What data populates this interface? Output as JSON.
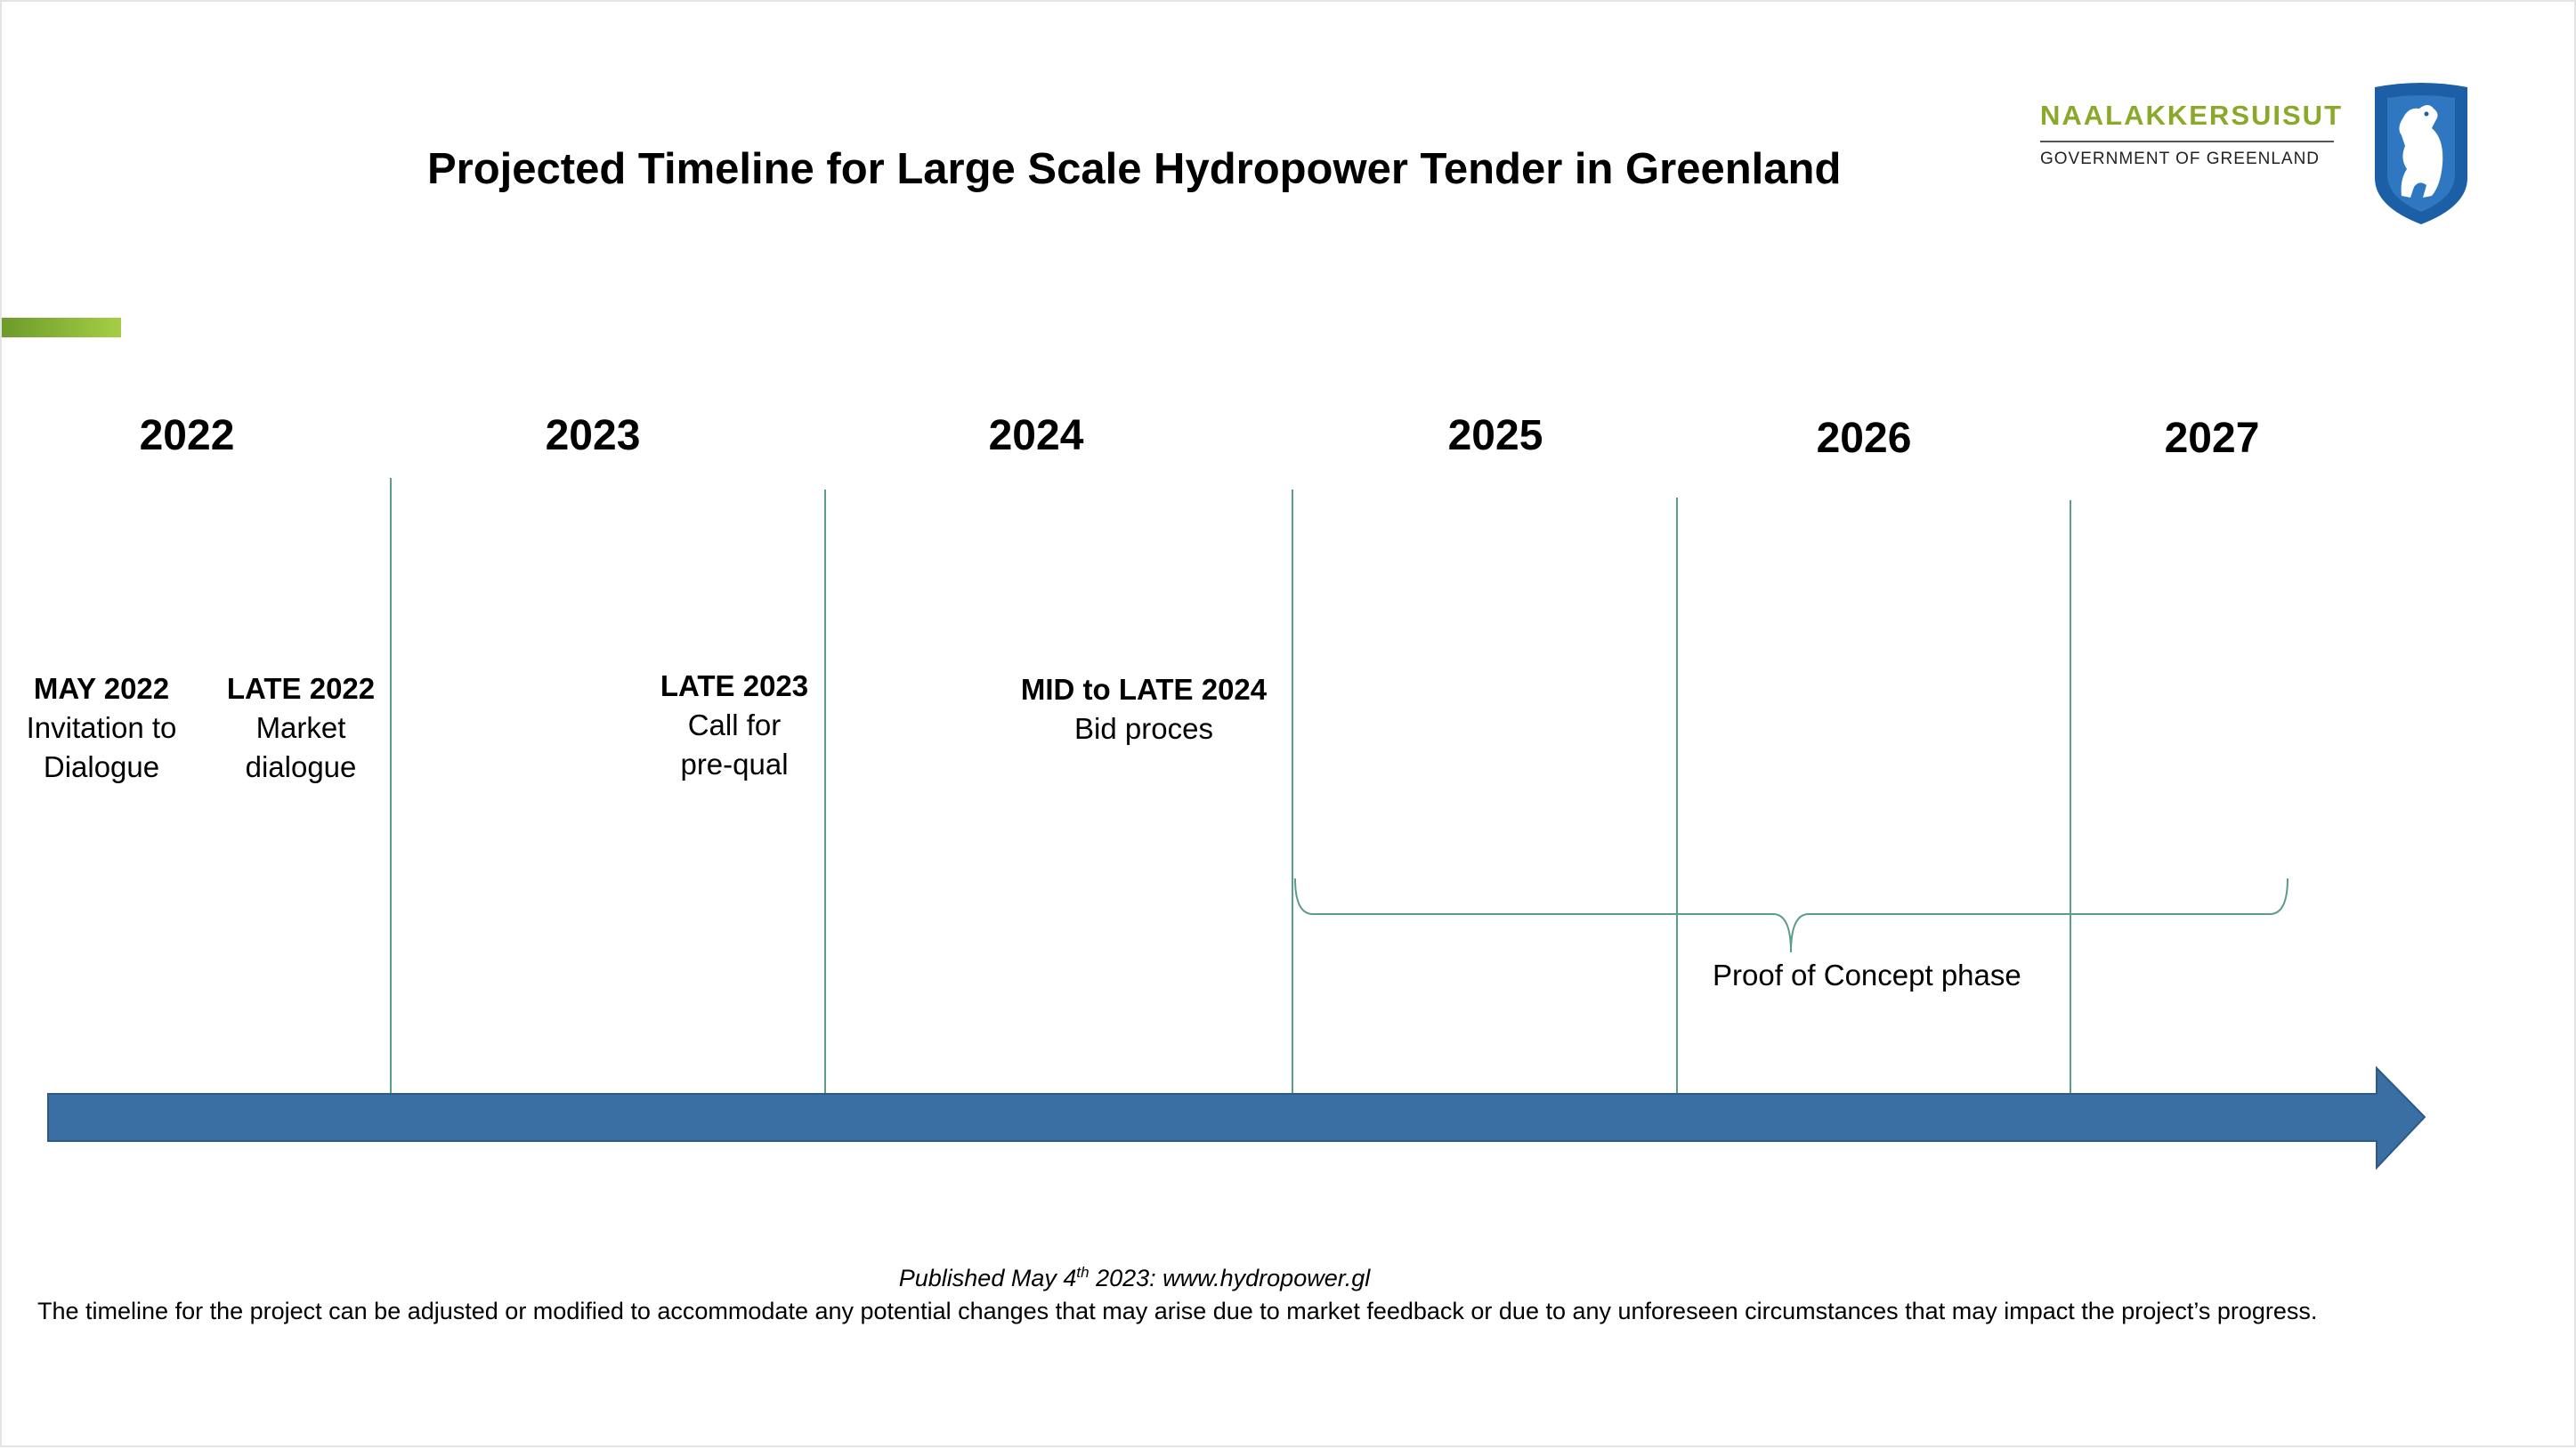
{
  "title": "Projected Timeline for Large Scale Hydropower Tender in Greenland",
  "logo": {
    "name": "NAALAKKERSUISUT",
    "subtitle": "GOVERNMENT OF GREENLAND",
    "emblem": "polar-bear-shield-icon",
    "colors": {
      "name": "#8aa829",
      "shield": "#1d5fa6"
    }
  },
  "years": [
    "2022",
    "2023",
    "2024",
    "2025",
    "2026",
    "2027"
  ],
  "milestones": [
    {
      "date": "MAY 2022",
      "lines": [
        "Invitation to",
        "Dialogue"
      ]
    },
    {
      "date": "LATE 2022",
      "lines": [
        "Market",
        "dialogue"
      ]
    },
    {
      "date": "LATE 2023",
      "lines": [
        "Call for",
        "pre-qual"
      ]
    },
    {
      "date": "MID to LATE 2024",
      "lines": [
        "Bid proces"
      ]
    }
  ],
  "phase": {
    "label": "Proof of Concept phase"
  },
  "footer": {
    "published_prefix": "Published May 4",
    "published_sup": "th",
    "published_suffix": " 2023: www.hydropower.gl",
    "disclaimer": "The timeline for the project can be adjusted or modified to accommodate any potential changes that may arise due to market feedback or due to any unforeseen circumstances that may impact the project’s progress."
  },
  "colors": {
    "arrow": "#3a6fa3",
    "divider": "#5a9e84",
    "accent": "#8dbb3b"
  }
}
